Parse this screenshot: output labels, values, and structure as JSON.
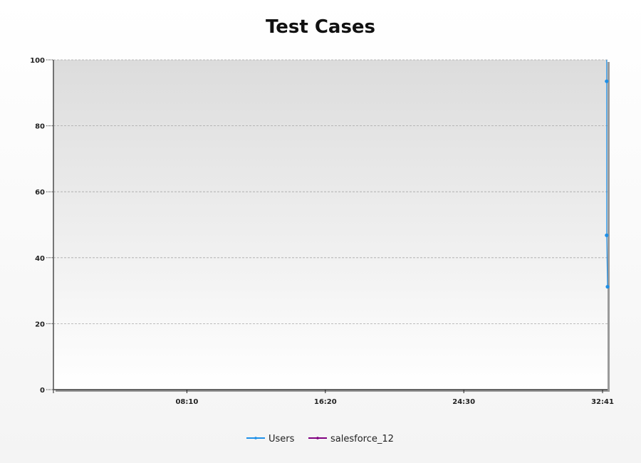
{
  "chart_data": {
    "type": "line",
    "title": "Test Cases",
    "xlabel": "",
    "ylabel": "",
    "xlim": [
      0,
      1961
    ],
    "ylim": [
      0,
      100
    ],
    "x_ticks": [
      {
        "value": 490,
        "label": "08:10"
      },
      {
        "value": 980,
        "label": "16:20"
      },
      {
        "value": 1470,
        "label": "24:30"
      },
      {
        "value": 1961,
        "label": "32:41"
      }
    ],
    "y_ticks": [
      0,
      20,
      40,
      60,
      80,
      100
    ],
    "grid": true,
    "legend_position": "bottom-center",
    "series": [
      {
        "name": "Users",
        "color": "#1e90e8",
        "points": [
          {
            "x": 1958,
            "y": 100
          },
          {
            "x": 1958,
            "y": 93.5
          },
          {
            "x": 1958,
            "y": 46.8
          },
          {
            "x": 1961,
            "y": 31.2
          }
        ]
      },
      {
        "name": "salesforce_12",
        "color": "#800080",
        "points": []
      }
    ]
  }
}
